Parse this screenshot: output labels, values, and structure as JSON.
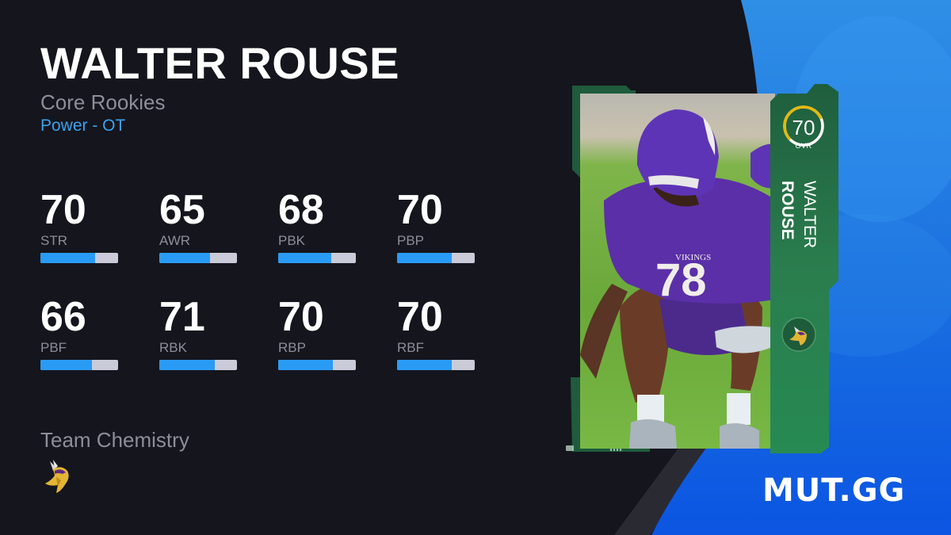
{
  "player": {
    "name": "WALTER ROUSE",
    "first_name": "WALTER",
    "last_name": "ROUSE",
    "program": "Core Rookies",
    "archetype": "Power - OT",
    "overall": "70",
    "overall_label": "OVR",
    "team": "Vikings",
    "jersey_number": "78"
  },
  "stats": [
    {
      "label": "STR",
      "value": "70",
      "pct": 70
    },
    {
      "label": "AWR",
      "value": "65",
      "pct": 65
    },
    {
      "label": "PBK",
      "value": "68",
      "pct": 68
    },
    {
      "label": "PBP",
      "value": "70",
      "pct": 70
    },
    {
      "label": "PBF",
      "value": "66",
      "pct": 66
    },
    {
      "label": "RBK",
      "value": "71",
      "pct": 71
    },
    {
      "label": "RBP",
      "value": "70",
      "pct": 70
    },
    {
      "label": "RBF",
      "value": "70",
      "pct": 70
    }
  ],
  "chemistry": {
    "title": "Team Chemistry",
    "icon": "vikings-logo-icon"
  },
  "brand": {
    "label": "MUT.GG"
  },
  "colors": {
    "background": "#15151d",
    "accent_blue": "#2a9bf4",
    "archetype_blue": "#3aa3ee",
    "bar_track": "#c9cbd9",
    "muted_text": "#8c8e98",
    "card_green": "#2a7a4c",
    "ovr_ring_gold": "#e5b80b",
    "brand_blue": "#0a5be0"
  }
}
